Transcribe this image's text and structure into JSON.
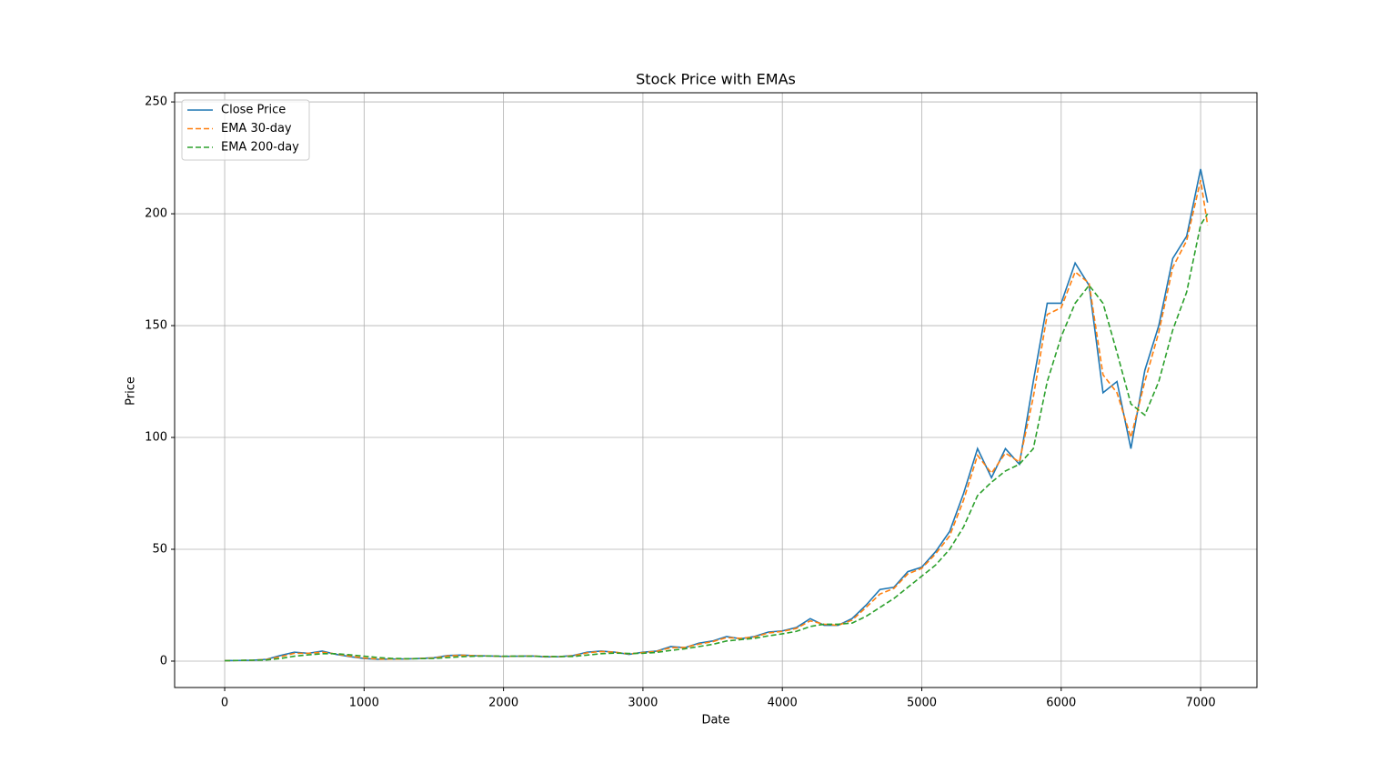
{
  "chart_data": {
    "type": "line",
    "title": "Stock Price with EMAs",
    "x_label": "Date",
    "y_label": "Price",
    "x": [
      0,
      100,
      200,
      300,
      400,
      500,
      600,
      700,
      800,
      900,
      1000,
      1100,
      1200,
      1300,
      1400,
      1500,
      1600,
      1700,
      1800,
      1900,
      2000,
      2100,
      2200,
      2300,
      2400,
      2500,
      2600,
      2700,
      2800,
      2900,
      3000,
      3100,
      3200,
      3300,
      3400,
      3500,
      3600,
      3700,
      3800,
      3900,
      4000,
      4100,
      4200,
      4300,
      4400,
      4500,
      4600,
      4700,
      4800,
      4900,
      5000,
      5100,
      5200,
      5300,
      5400,
      5500,
      5600,
      5700,
      5800,
      5900,
      6000,
      6100,
      6200,
      6300,
      6400,
      6500,
      6600,
      6700,
      6800,
      6900,
      7000,
      7050
    ],
    "series": [
      {
        "name": "Close Price",
        "color": "#1f77b4",
        "linestyle": "solid",
        "values": [
          0.2,
          0.3,
          0.4,
          0.8,
          2.5,
          4,
          3.5,
          4.5,
          3,
          2,
          1.2,
          0.8,
          0.9,
          1,
          1.2,
          1.5,
          2.5,
          2.7,
          2.4,
          2.3,
          2.1,
          2.2,
          2.3,
          1.9,
          2,
          2.5,
          4,
          4.5,
          4,
          3,
          4,
          4.5,
          6.5,
          6,
          8,
          9,
          11,
          10,
          11,
          13,
          13.5,
          15,
          19,
          16,
          16,
          19,
          25,
          32,
          33,
          40,
          42,
          49,
          58,
          75,
          95,
          82,
          95,
          88,
          125,
          160,
          160,
          178,
          168,
          120,
          125,
          95,
          130,
          150,
          180,
          190,
          220,
          205
        ]
      },
      {
        "name": "EMA 30-day",
        "color": "#ff7f0e",
        "linestyle": "dashed",
        "values": [
          0.2,
          0.3,
          0.4,
          0.7,
          2,
          3.5,
          3.5,
          4,
          3.2,
          2.2,
          1.4,
          0.9,
          0.9,
          1,
          1.2,
          1.4,
          2.3,
          2.6,
          2.4,
          2.3,
          2.1,
          2.2,
          2.3,
          2,
          2,
          2.4,
          3.7,
          4.3,
          4,
          3.2,
          3.8,
          4.4,
          6,
          6.1,
          7.6,
          8.7,
          10.5,
          10.2,
          10.8,
          12.6,
          13.3,
          14.6,
          18,
          16.5,
          16,
          18.3,
          24,
          30,
          32.5,
          39,
          41.5,
          48,
          56,
          72,
          92,
          84,
          93,
          89,
          118,
          155,
          158,
          174,
          169,
          128,
          120,
          100,
          125,
          147,
          176,
          188,
          215,
          195
        ]
      },
      {
        "name": "EMA 200-day",
        "color": "#2ca02c",
        "linestyle": "dashed",
        "values": [
          0.2,
          0.3,
          0.4,
          0.5,
          1.2,
          2.2,
          2.8,
          3.3,
          3.3,
          2.8,
          2.2,
          1.6,
          1.2,
          1.1,
          1.1,
          1.2,
          1.6,
          2,
          2.2,
          2.3,
          2.2,
          2.2,
          2.2,
          2.1,
          2,
          2.1,
          2.7,
          3.3,
          3.6,
          3.4,
          3.5,
          3.9,
          4.8,
          5.5,
          6.5,
          7.5,
          9,
          9.6,
          10.2,
          11.3,
          12.2,
          13.3,
          15.5,
          16.5,
          16.5,
          17,
          20,
          24,
          28,
          33,
          38,
          43,
          50,
          60,
          74,
          80,
          85,
          88,
          95,
          125,
          145,
          160,
          168,
          160,
          138,
          115,
          110,
          125,
          148,
          165,
          195,
          200
        ]
      }
    ],
    "xlim": [
      -359,
      7404
    ],
    "ylim": [
      -11.8,
      254.1
    ],
    "xticks": [
      0,
      1000,
      2000,
      3000,
      4000,
      5000,
      6000,
      7000
    ],
    "yticks": [
      0,
      50,
      100,
      150,
      200,
      250
    ],
    "grid": true,
    "legend": "upper left"
  }
}
